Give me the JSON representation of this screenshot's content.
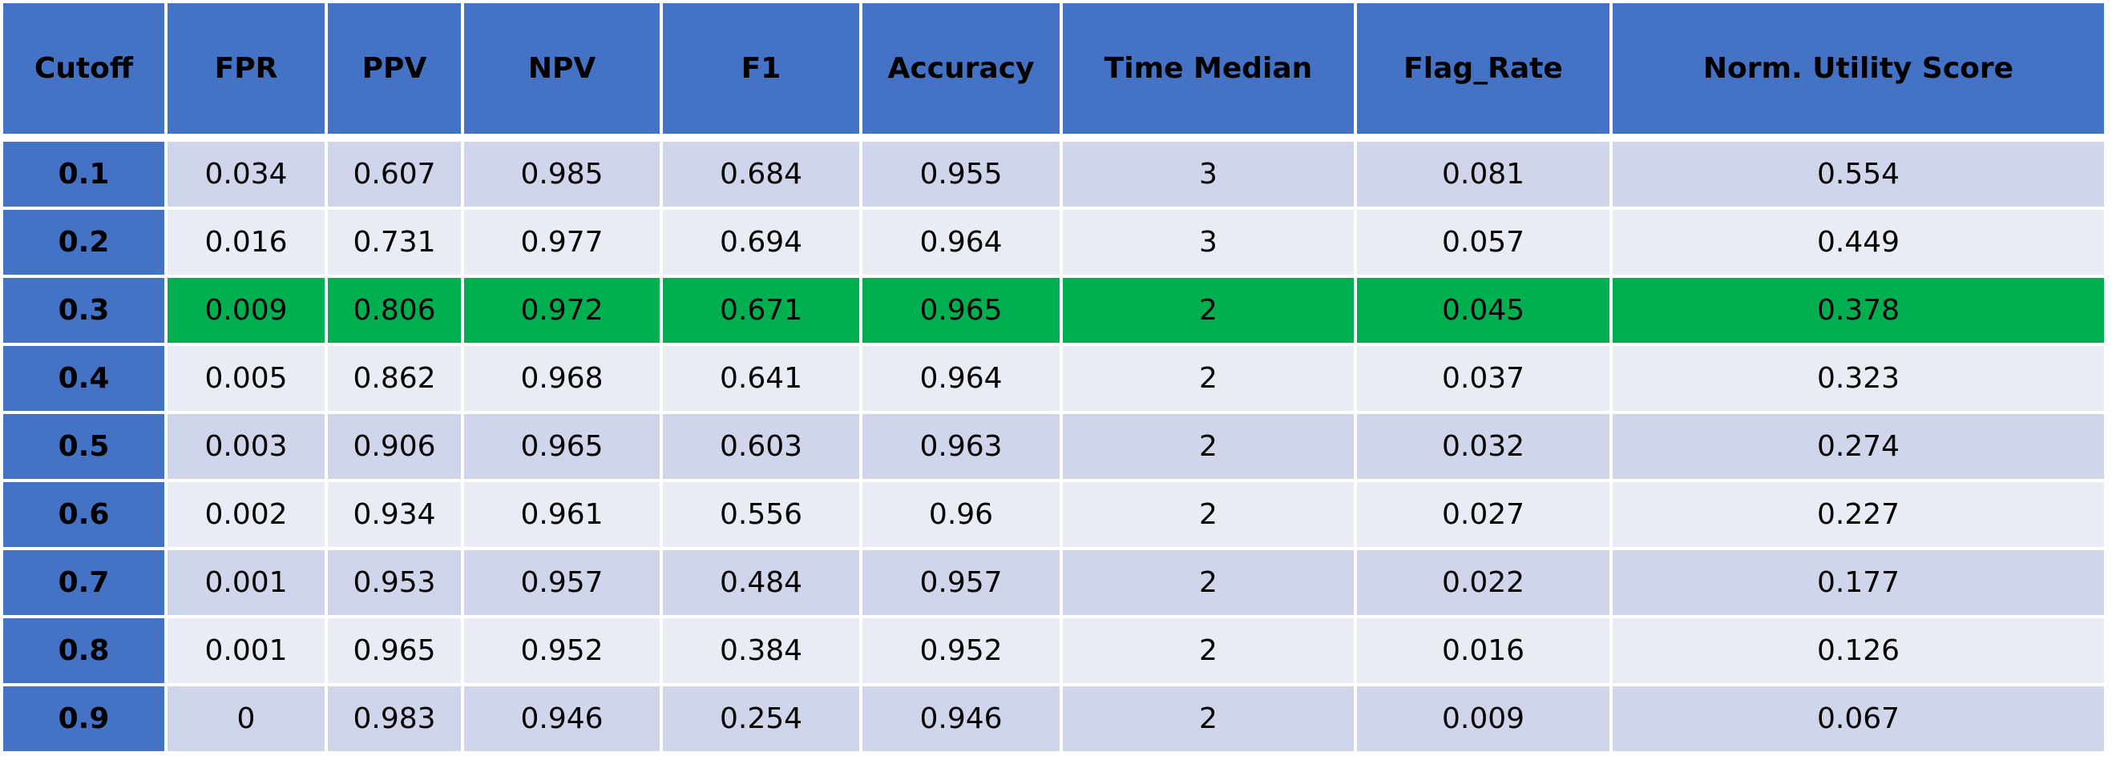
{
  "table": {
    "columns": [
      "Cutoff",
      "FPR",
      "PPV",
      "NPV",
      "F1",
      "Accuracy",
      "Time Median",
      "Flag_Rate",
      "Norm. Utility Score"
    ],
    "rows": [
      [
        0.1,
        0.034,
        0.607,
        0.985,
        0.684,
        0.955,
        3,
        0.081,
        0.554
      ],
      [
        0.2,
        0.016,
        0.731,
        0.977,
        0.694,
        0.964,
        3,
        0.057,
        0.449
      ],
      [
        0.3,
        0.009,
        0.806,
        0.972,
        0.671,
        0.965,
        2,
        0.045,
        0.378
      ],
      [
        0.4,
        0.005,
        0.862,
        0.968,
        0.641,
        0.964,
        2,
        0.037,
        0.323
      ],
      [
        0.5,
        0.003,
        0.906,
        0.965,
        0.603,
        0.963,
        2,
        0.032,
        0.274
      ],
      [
        0.6,
        0.002,
        0.934,
        0.961,
        0.556,
        0.96,
        2,
        0.027,
        0.227
      ],
      [
        0.7,
        0.001,
        0.953,
        0.957,
        0.484,
        0.957,
        2,
        0.022,
        0.177
      ],
      [
        0.8,
        0.001,
        0.965,
        0.952,
        0.384,
        0.952,
        2,
        0.016,
        0.126
      ],
      [
        0.9,
        0,
        0.983,
        0.946,
        0.254,
        0.946,
        2,
        0.009,
        0.067
      ]
    ]
  }
}
